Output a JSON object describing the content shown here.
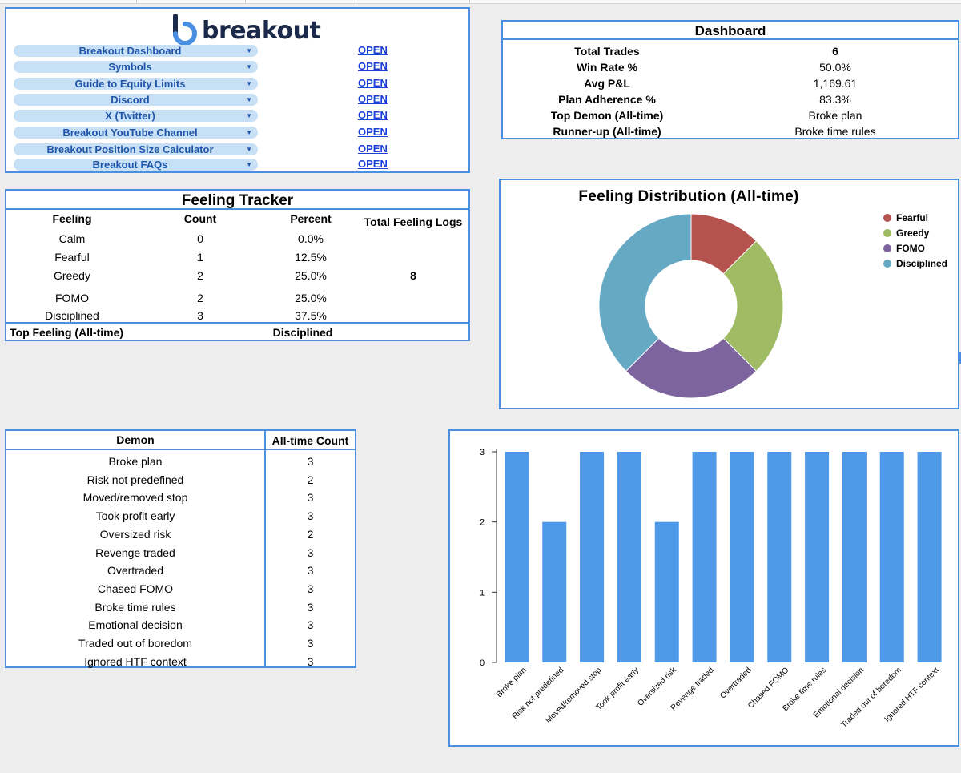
{
  "brand": {
    "name": "breakout"
  },
  "links": [
    {
      "label": "Breakout Dashboard",
      "action": "OPEN"
    },
    {
      "label": "Symbols",
      "action": "OPEN"
    },
    {
      "label": "Guide to Equity Limits",
      "action": "OPEN"
    },
    {
      "label": "Discord",
      "action": "OPEN"
    },
    {
      "label": "X (Twitter)",
      "action": "OPEN"
    },
    {
      "label": "Breakout YouTube Channel",
      "action": "OPEN"
    },
    {
      "label": "Breakout Position Size Calculator",
      "action": "OPEN"
    },
    {
      "label": "Breakout FAQs",
      "action": "OPEN"
    }
  ],
  "dashboard": {
    "title": "Dashboard",
    "rows": [
      {
        "label": "Total Trades",
        "value": "6"
      },
      {
        "label": "Win Rate %",
        "value": "50.0%"
      },
      {
        "label": "Avg P&L",
        "value": "1,169.61"
      },
      {
        "label": "Plan Adherence %",
        "value": "83.3%"
      },
      {
        "label": "Top Demon (All-time)",
        "value": "Broke plan"
      },
      {
        "label": "Runner-up (All-time)",
        "value": "Broke time rules"
      }
    ]
  },
  "feeling_tracker": {
    "title": "Feeling Tracker",
    "headers": {
      "feeling": "Feeling",
      "count": "Count",
      "percent": "Percent",
      "total": "Total Feeling Logs"
    },
    "rows": [
      {
        "feeling": "Calm",
        "count": "0",
        "percent": "0.0%"
      },
      {
        "feeling": "Fearful",
        "count": "1",
        "percent": "12.5%"
      },
      {
        "feeling": "Greedy",
        "count": "2",
        "percent": "25.0%"
      },
      {
        "feeling": "FOMO",
        "count": "2",
        "percent": "25.0%"
      },
      {
        "feeling": "Disciplined",
        "count": "3",
        "percent": "37.5%"
      }
    ],
    "total_logs": "8",
    "top_label": "Top Feeling (All-time)",
    "top_value": "Disciplined"
  },
  "demons_table": {
    "headers": {
      "demon": "Demon",
      "count": "All-time Count"
    },
    "rows": [
      {
        "demon": "Broke plan",
        "count": "3"
      },
      {
        "demon": "Risk not predefined",
        "count": "2"
      },
      {
        "demon": "Moved/removed stop",
        "count": "3"
      },
      {
        "demon": "Took profit early",
        "count": "3"
      },
      {
        "demon": "Oversized risk",
        "count": "2"
      },
      {
        "demon": "Revenge traded",
        "count": "3"
      },
      {
        "demon": "Overtraded",
        "count": "3"
      },
      {
        "demon": "Chased FOMO",
        "count": "3"
      },
      {
        "demon": "Broke time rules",
        "count": "3"
      },
      {
        "demon": "Emotional decision",
        "count": "3"
      },
      {
        "demon": "Traded out of boredom",
        "count": "3"
      },
      {
        "demon": "Ignored HTF context",
        "count": "3"
      }
    ]
  },
  "chart_data": [
    {
      "type": "pie",
      "title": "Feeling Distribution (All-time)",
      "donut": true,
      "categories": [
        "Fearful",
        "Greedy",
        "FOMO",
        "Disciplined"
      ],
      "values": [
        1,
        2,
        2,
        3
      ],
      "colors": [
        "#b5534e",
        "#9fbb63",
        "#7e649e",
        "#66a9c4"
      ],
      "legend": "right"
    },
    {
      "type": "bar",
      "title": "",
      "categories": [
        "Broke plan",
        "Risk not predefined",
        "Moved/removed stop",
        "Took profit early",
        "Oversized risk",
        "Revenge traded",
        "Overtraded",
        "Chased FOMO",
        "Broke time rules",
        "Emotional decision",
        "Traded out of boredom",
        "Ignored HTF context"
      ],
      "values": [
        3,
        2,
        3,
        3,
        2,
        3,
        3,
        3,
        3,
        3,
        3,
        3
      ],
      "ylim": [
        0,
        3
      ],
      "yticks": [
        "0",
        "1",
        "2",
        "3"
      ],
      "color": "#4f9ae8"
    }
  ]
}
